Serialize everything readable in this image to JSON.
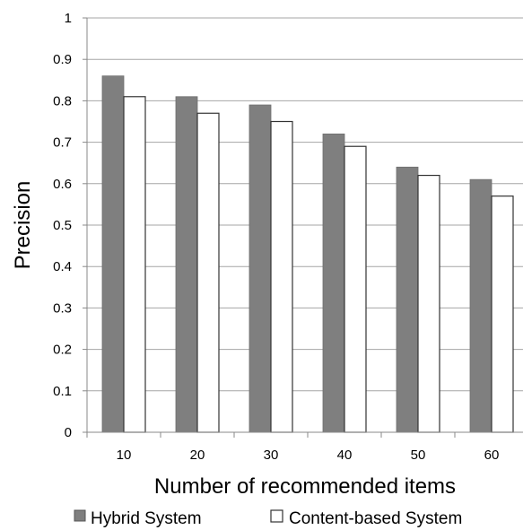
{
  "chart_data": {
    "type": "bar",
    "title": "",
    "xlabel": "Number of recommended items",
    "ylabel": "Precision",
    "categories": [
      "10",
      "20",
      "30",
      "40",
      "50",
      "60"
    ],
    "series": [
      {
        "name": "Hybrid System",
        "values": [
          0.86,
          0.81,
          0.79,
          0.72,
          0.64,
          0.61
        ],
        "color": "#7f7f7f"
      },
      {
        "name": "Content-based System",
        "values": [
          0.81,
          0.77,
          0.75,
          0.69,
          0.62,
          0.57
        ],
        "color": "#ffffff"
      }
    ],
    "ylim": [
      0,
      1
    ],
    "yticks": [
      "0",
      "0.1",
      "0.2",
      "0.3",
      "0.4",
      "0.5",
      "0.6",
      "0.7",
      "0.8",
      "0.9",
      "1"
    ],
    "grid": true,
    "legend_position": "bottom"
  }
}
